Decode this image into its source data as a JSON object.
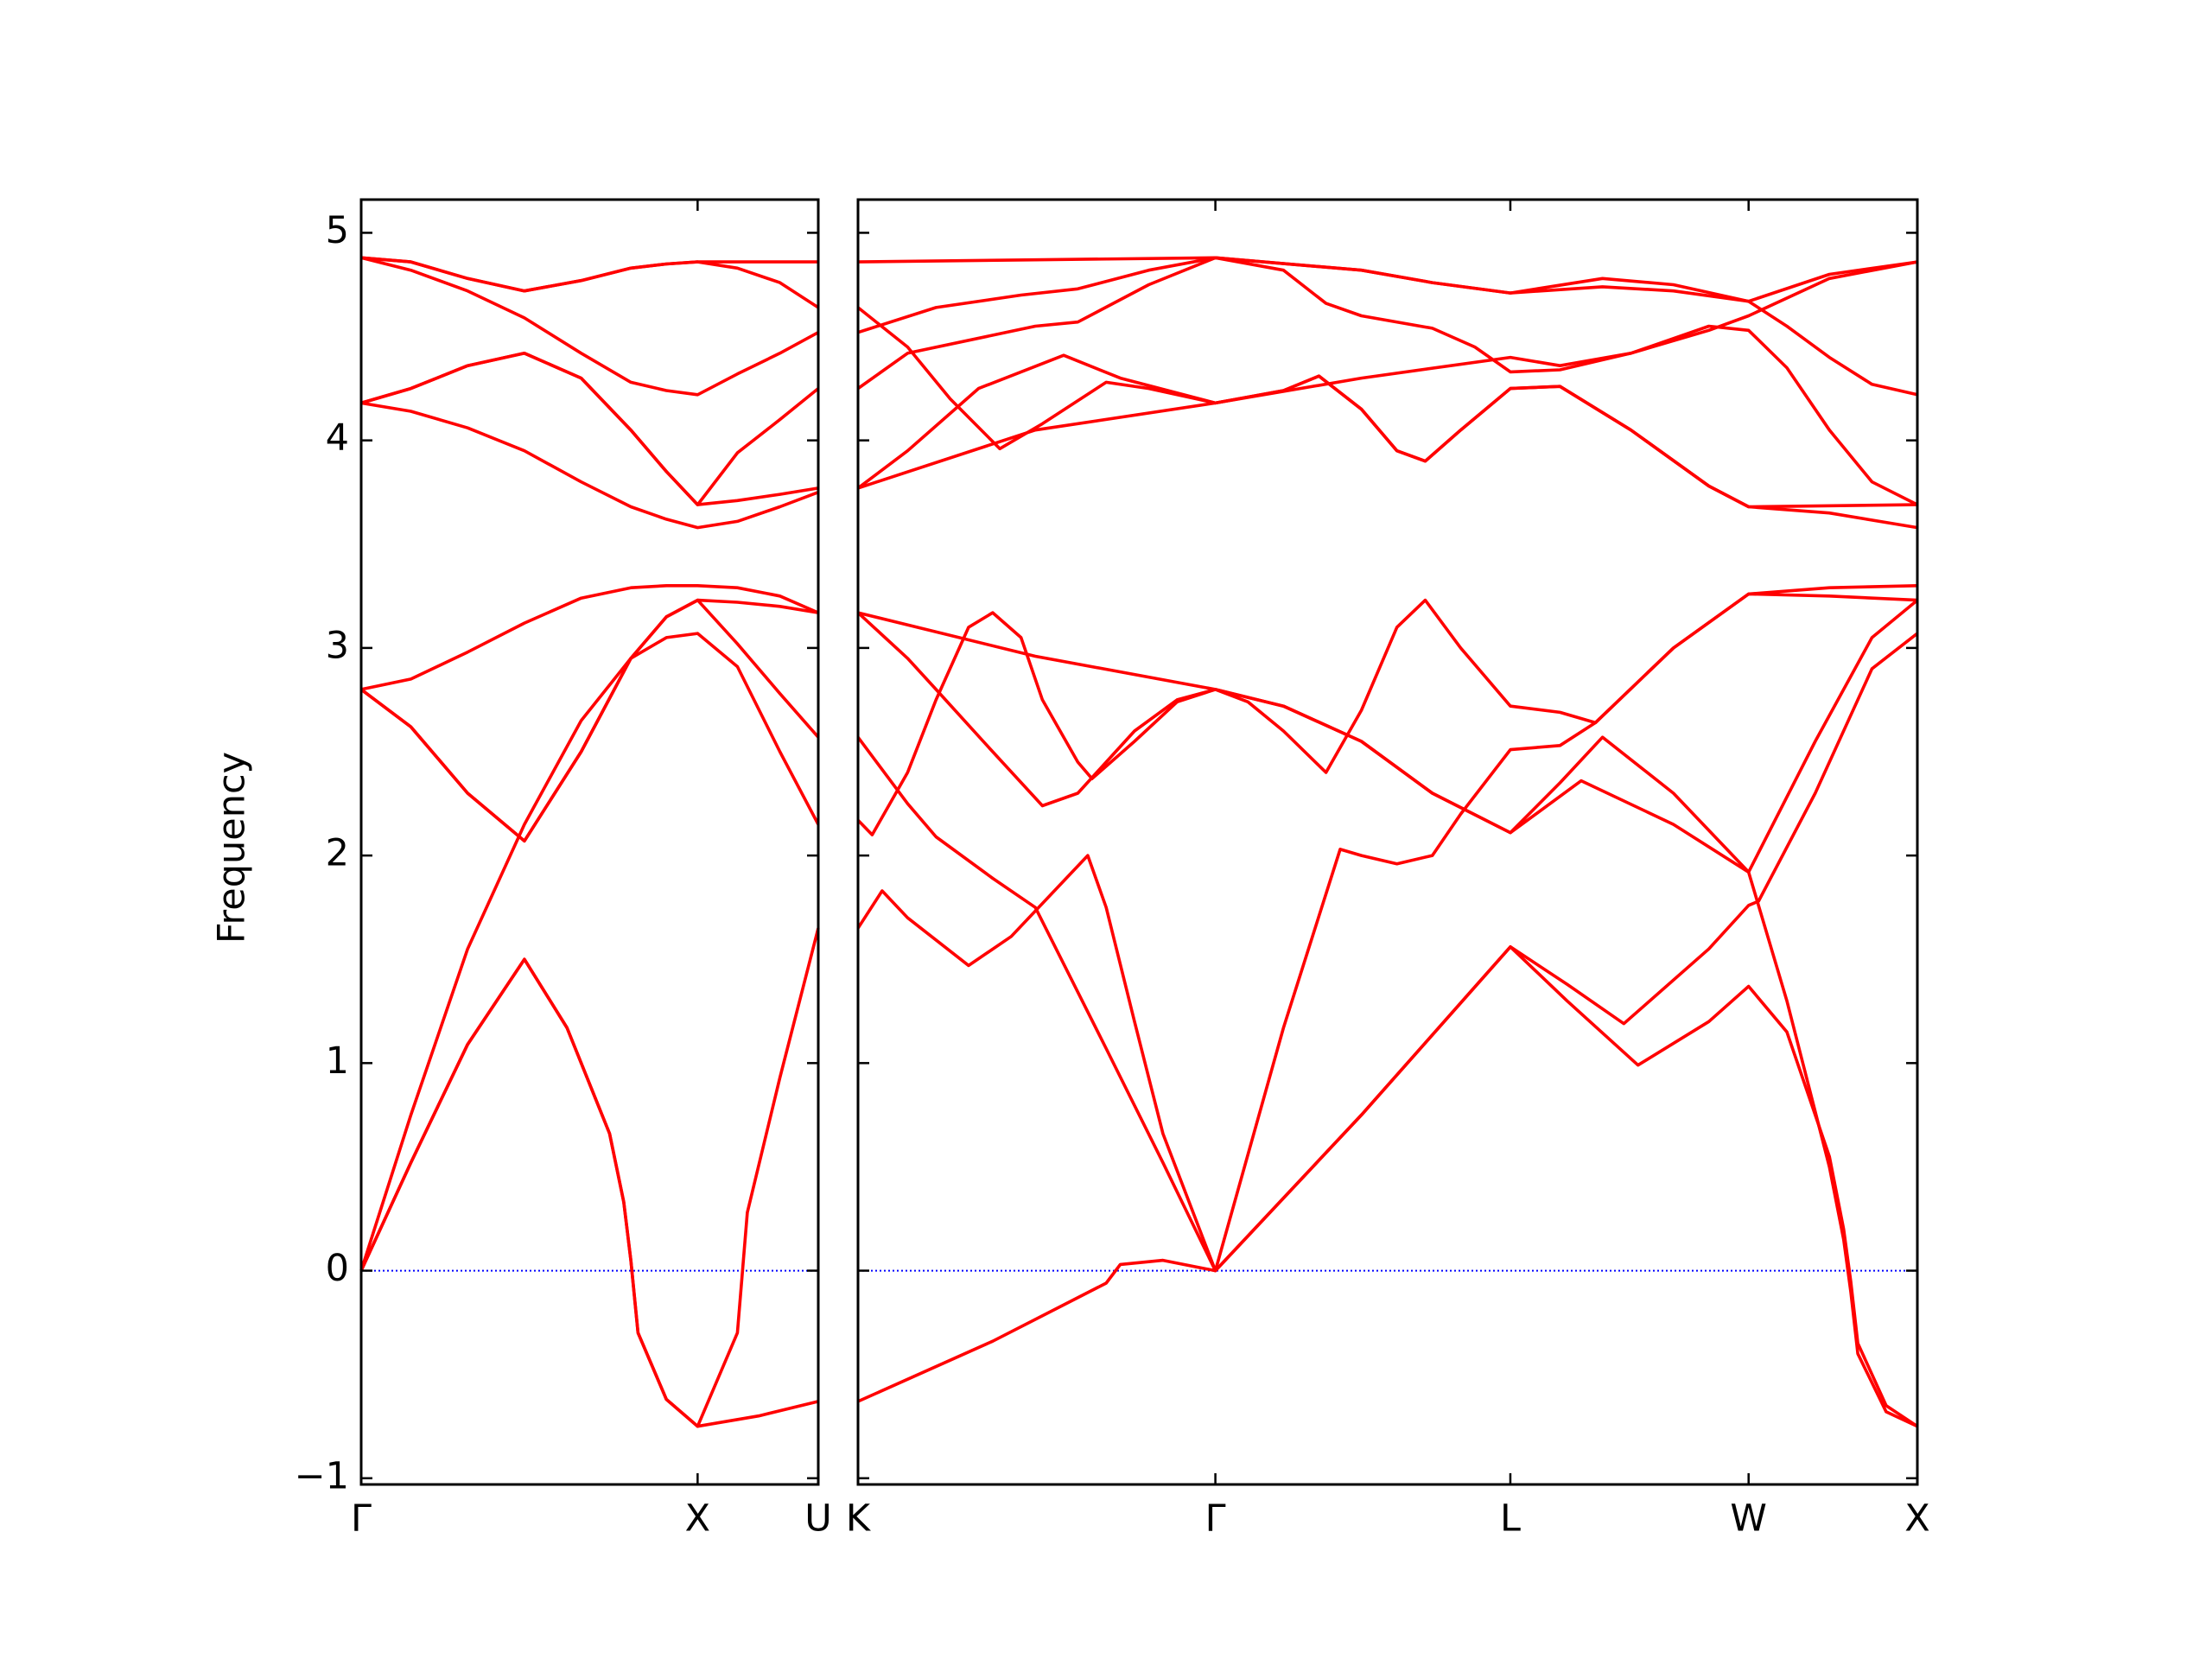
{
  "chart_data": [
    {
      "type": "line",
      "y_label": "Frequency",
      "color": "#ff0000",
      "xlim": [
        0,
        3.22
      ],
      "ylim": [
        -1.03,
        5.16
      ],
      "xticks": [
        {
          "value": 0,
          "label": "Γ"
        },
        {
          "value": 2.37,
          "label": "X"
        },
        {
          "value": 3.22,
          "label": "U"
        }
      ],
      "yticks": [
        {
          "value": -1,
          "label": "−1"
        },
        0,
        1,
        2,
        3,
        4,
        5
      ],
      "hline": 0,
      "hline_color": "#0000ff",
      "series": [
        {
          "x": [
            0,
            0.35,
            0.75,
            1.15,
            1.45,
            1.75,
            1.85,
            1.9,
            1.95,
            2.15,
            2.37,
            2.8,
            3.22
          ],
          "values": [
            0,
            0.52,
            1.09,
            1.5,
            1.17,
            0.66,
            0.33,
            0.05,
            -0.3,
            -0.62,
            -0.75,
            -0.7,
            -0.63
          ]
        },
        {
          "x": [
            0,
            0.35,
            0.75,
            1.15,
            1.45,
            1.75,
            1.85,
            1.9,
            1.95,
            2.15,
            2.37,
            2.65,
            2.72,
            2.95,
            3.22
          ],
          "values": [
            0,
            0.52,
            1.09,
            1.5,
            1.17,
            0.66,
            0.33,
            0.05,
            -0.3,
            -0.62,
            -0.75,
            -0.3,
            0.28,
            0.93,
            1.65
          ]
        },
        {
          "x": [
            0,
            0.35,
            0.75,
            1.15,
            1.55,
            1.9,
            2.15,
            2.37,
            2.65,
            2.95,
            3.22
          ],
          "values": [
            0,
            0.75,
            1.55,
            2.15,
            2.65,
            2.95,
            3.05,
            3.07,
            2.91,
            2.5,
            2.15
          ]
        },
        {
          "x": [
            0,
            0.35,
            0.75,
            1.15,
            1.55,
            1.9,
            2.15,
            2.37,
            2.65,
            2.95,
            3.22
          ],
          "values": [
            2.8,
            2.62,
            2.3,
            2.07,
            2.5,
            2.95,
            3.15,
            3.23,
            3.22,
            3.2,
            3.17
          ]
        },
        {
          "x": [
            0,
            0.35,
            0.75,
            1.15,
            1.55,
            1.9,
            2.15,
            2.37,
            2.65,
            2.95,
            3.22
          ],
          "values": [
            2.8,
            2.62,
            2.3,
            2.07,
            2.5,
            2.95,
            3.15,
            3.23,
            3.02,
            2.78,
            2.57
          ]
        },
        {
          "x": [
            0,
            0.35,
            0.75,
            1.15,
            1.55,
            1.9,
            2.15,
            2.37,
            2.65,
            2.95,
            3.22
          ],
          "values": [
            2.8,
            2.85,
            2.98,
            3.12,
            3.24,
            3.29,
            3.3,
            3.3,
            3.29,
            3.25,
            3.17
          ]
        },
        {
          "x": [
            0,
            0.35,
            0.75,
            1.15,
            1.55,
            1.9,
            2.15,
            2.37,
            2.65,
            2.95,
            3.22
          ],
          "values": [
            4.88,
            4.86,
            4.78,
            4.72,
            4.77,
            4.83,
            4.85,
            4.86,
            4.86,
            4.86,
            4.86
          ]
        },
        {
          "x": [
            0,
            0.35,
            0.75,
            1.15,
            1.55,
            1.9,
            2.15,
            2.37,
            2.65,
            2.95,
            3.22
          ],
          "values": [
            4.88,
            4.86,
            4.78,
            4.72,
            4.77,
            4.83,
            4.85,
            4.86,
            4.83,
            4.76,
            4.64
          ]
        },
        {
          "x": [
            0,
            0.35,
            0.75,
            1.15,
            1.55,
            1.9,
            2.15,
            2.37,
            2.65,
            2.95,
            3.22
          ],
          "values": [
            4.88,
            4.82,
            4.72,
            4.59,
            4.42,
            4.28,
            4.24,
            4.22,
            4.32,
            4.42,
            4.52
          ]
        },
        {
          "x": [
            0,
            0.35,
            0.75,
            1.15,
            1.55,
            1.9,
            2.15,
            2.37,
            2.65,
            2.95,
            3.22
          ],
          "values": [
            4.18,
            4.25,
            4.36,
            4.42,
            4.3,
            4.05,
            3.85,
            3.69,
            3.94,
            4.1,
            4.25
          ]
        },
        {
          "x": [
            0,
            0.35,
            0.75,
            1.15,
            1.55,
            1.9,
            2.15,
            2.37,
            2.65,
            2.95,
            3.22
          ],
          "values": [
            4.18,
            4.14,
            4.06,
            3.95,
            3.8,
            3.68,
            3.62,
            3.58,
            3.61,
            3.68,
            3.75
          ]
        },
        {
          "x": [
            0,
            0.35,
            0.75,
            1.15,
            1.55,
            1.9,
            2.15,
            2.37,
            2.65,
            2.95,
            3.22
          ],
          "values": [
            4.18,
            4.25,
            4.36,
            4.42,
            4.3,
            4.05,
            3.85,
            3.69,
            3.71,
            3.74,
            3.77
          ]
        }
      ]
    },
    {
      "type": "line",
      "color": "#ff0000",
      "xlim": [
        3.22,
        10.69
      ],
      "ylim": [
        -1.03,
        5.16
      ],
      "xticks": [
        {
          "value": 3.22,
          "label": "K"
        },
        {
          "value": 5.74,
          "label": "Γ"
        },
        {
          "value": 7.82,
          "label": "L"
        },
        {
          "value": 9.5,
          "label": "W"
        },
        {
          "value": 10.69,
          "label": "X"
        }
      ],
      "yticks": [
        -1,
        0,
        1,
        2,
        3,
        4,
        5
      ],
      "hline": 0,
      "hline_color": "#0000ff",
      "series": [
        {
          "x": [
            3.22,
            4.17,
            4.97,
            5.07,
            5.37,
            5.74,
            6.77,
            7.82,
            8.22,
            8.72,
            9.22,
            9.5,
            9.77,
            10.07,
            10.17,
            10.22,
            10.27,
            10.47,
            10.69
          ],
          "values": [
            -0.63,
            -0.34,
            -0.06,
            0.03,
            0.05,
            0,
            0.75,
            1.56,
            1.3,
            0.99,
            1.2,
            1.37,
            1.15,
            0.55,
            0.2,
            -0.05,
            -0.35,
            -0.65,
            -0.75
          ]
        },
        {
          "x": [
            3.22,
            3.39,
            3.57,
            4.0,
            4.3,
            4.84,
            4.97,
            5.17,
            5.37,
            5.74,
            6.77,
            7.82,
            8.22,
            8.62,
            9.22,
            9.5,
            9.57,
            9.97,
            10.37,
            10.69
          ],
          "values": [
            1.65,
            1.83,
            1.7,
            1.47,
            1.61,
            2.0,
            1.75,
            1.2,
            0.66,
            0,
            0.75,
            1.56,
            1.38,
            1.19,
            1.55,
            1.76,
            1.78,
            2.3,
            2.9,
            3.07
          ]
        },
        {
          "x": [
            3.22,
            3.57,
            3.77,
            4.17,
            4.47,
            4.97,
            5.37,
            5.74,
            6.22,
            6.62,
            6.77,
            7.02,
            7.27,
            7.47,
            7.82,
            8.17,
            8.42,
            8.97,
            9.5,
            10.07,
            10.69
          ],
          "values": [
            2.57,
            2.25,
            2.09,
            1.89,
            1.75,
            1.07,
            0.52,
            0,
            1.17,
            2.03,
            2.0,
            1.96,
            2.0,
            2.2,
            2.51,
            2.53,
            2.64,
            3.0,
            3.26,
            3.29,
            3.3
          ]
        },
        {
          "x": [
            3.22,
            3.32,
            3.57,
            3.77,
            4.0,
            4.17,
            4.37,
            4.52,
            4.77,
            4.87,
            5.17,
            5.47,
            5.74,
            5.97,
            6.22,
            6.52,
            6.77,
            7.02,
            7.22,
            7.47,
            7.82,
            8.17,
            8.42,
            8.97,
            9.5,
            10.07,
            10.69
          ],
          "values": [
            2.17,
            2.1,
            2.4,
            2.75,
            3.1,
            3.17,
            3.05,
            2.75,
            2.45,
            2.37,
            2.55,
            2.74,
            2.8,
            2.74,
            2.6,
            2.4,
            2.7,
            3.1,
            3.23,
            3.0,
            2.72,
            2.69,
            2.64,
            3.0,
            3.26,
            3.25,
            3.23
          ]
        },
        {
          "x": [
            3.22,
            3.57,
            3.77,
            4.17,
            4.52,
            4.77,
            4.97,
            5.17,
            5.47,
            5.74,
            6.22,
            6.77,
            7.27,
            7.82,
            8.17,
            8.47,
            8.97,
            9.5,
            9.97,
            10.37,
            10.69
          ],
          "values": [
            3.17,
            2.95,
            2.8,
            2.5,
            2.24,
            2.3,
            2.45,
            2.6,
            2.75,
            2.8,
            2.72,
            2.55,
            2.3,
            2.11,
            2.35,
            2.57,
            2.3,
            1.92,
            2.55,
            3.05,
            3.23
          ]
        },
        {
          "x": [
            3.22,
            4.47,
            5.74,
            6.22,
            6.77,
            7.27,
            7.82,
            8.32,
            8.97,
            9.5,
            9.77,
            10.07,
            10.17,
            10.22,
            10.27,
            10.47,
            10.69
          ],
          "values": [
            3.17,
            2.96,
            2.8,
            2.72,
            2.55,
            2.3,
            2.11,
            2.36,
            2.15,
            1.92,
            1.3,
            0.5,
            0.15,
            -0.1,
            -0.4,
            -0.68,
            -0.75
          ]
        },
        {
          "x": [
            3.22,
            4.47,
            5.74,
            6.77,
            7.27,
            7.82,
            8.47,
            8.97,
            9.5,
            10.07,
            10.69
          ],
          "values": [
            4.86,
            4.87,
            4.88,
            4.82,
            4.76,
            4.71,
            4.78,
            4.75,
            4.67,
            4.8,
            4.86
          ]
        },
        {
          "x": [
            3.22,
            3.77,
            4.37,
            4.77,
            5.27,
            5.74,
            6.77,
            7.27,
            7.82,
            8.47,
            8.97,
            9.5,
            9.77,
            10.07,
            10.37,
            10.69
          ],
          "values": [
            4.52,
            4.64,
            4.7,
            4.73,
            4.82,
            4.88,
            4.82,
            4.76,
            4.71,
            4.74,
            4.72,
            4.67,
            4.55,
            4.4,
            4.27,
            4.22
          ]
        },
        {
          "x": [
            3.22,
            3.57,
            4.47,
            4.77,
            5.27,
            5.74,
            6.22,
            6.52,
            6.77,
            7.27,
            7.57,
            7.82,
            8.17,
            8.67,
            9.22,
            9.5,
            10.07,
            10.69
          ],
          "values": [
            4.25,
            4.42,
            4.55,
            4.57,
            4.75,
            4.88,
            4.82,
            4.66,
            4.6,
            4.54,
            4.45,
            4.33,
            4.34,
            4.42,
            4.53,
            4.6,
            4.78,
            4.86
          ]
        },
        {
          "x": [
            3.22,
            3.57,
            3.87,
            4.22,
            4.52,
            4.97,
            5.27,
            5.74,
            6.77,
            7.82,
            8.17,
            8.67,
            9.22,
            9.5,
            9.77,
            10.07,
            10.37,
            10.69
          ],
          "values": [
            4.64,
            4.45,
            4.2,
            3.96,
            4.08,
            4.28,
            4.25,
            4.18,
            4.3,
            4.4,
            4.36,
            4.42,
            4.55,
            4.53,
            4.35,
            4.05,
            3.8,
            3.69
          ]
        },
        {
          "x": [
            3.22,
            3.57,
            4.07,
            4.67,
            5.07,
            5.74,
            6.22,
            6.47,
            6.77,
            7.02,
            7.22,
            7.47,
            7.82,
            8.17,
            8.67,
            9.22,
            9.5,
            10.69
          ],
          "values": [
            3.77,
            3.95,
            4.25,
            4.41,
            4.3,
            4.18,
            4.24,
            4.31,
            4.15,
            3.95,
            3.9,
            4.05,
            4.25,
            4.26,
            4.05,
            3.78,
            3.68,
            3.69
          ]
        },
        {
          "x": [
            3.22,
            4.47,
            5.74,
            6.22,
            6.47,
            6.77,
            7.02,
            7.22,
            7.47,
            7.82,
            8.17,
            8.67,
            9.22,
            9.5,
            10.07,
            10.69
          ],
          "values": [
            3.77,
            4.05,
            4.18,
            4.24,
            4.31,
            4.15,
            3.95,
            3.9,
            4.05,
            4.25,
            4.26,
            4.05,
            3.78,
            3.68,
            3.65,
            3.58
          ]
        }
      ]
    }
  ]
}
